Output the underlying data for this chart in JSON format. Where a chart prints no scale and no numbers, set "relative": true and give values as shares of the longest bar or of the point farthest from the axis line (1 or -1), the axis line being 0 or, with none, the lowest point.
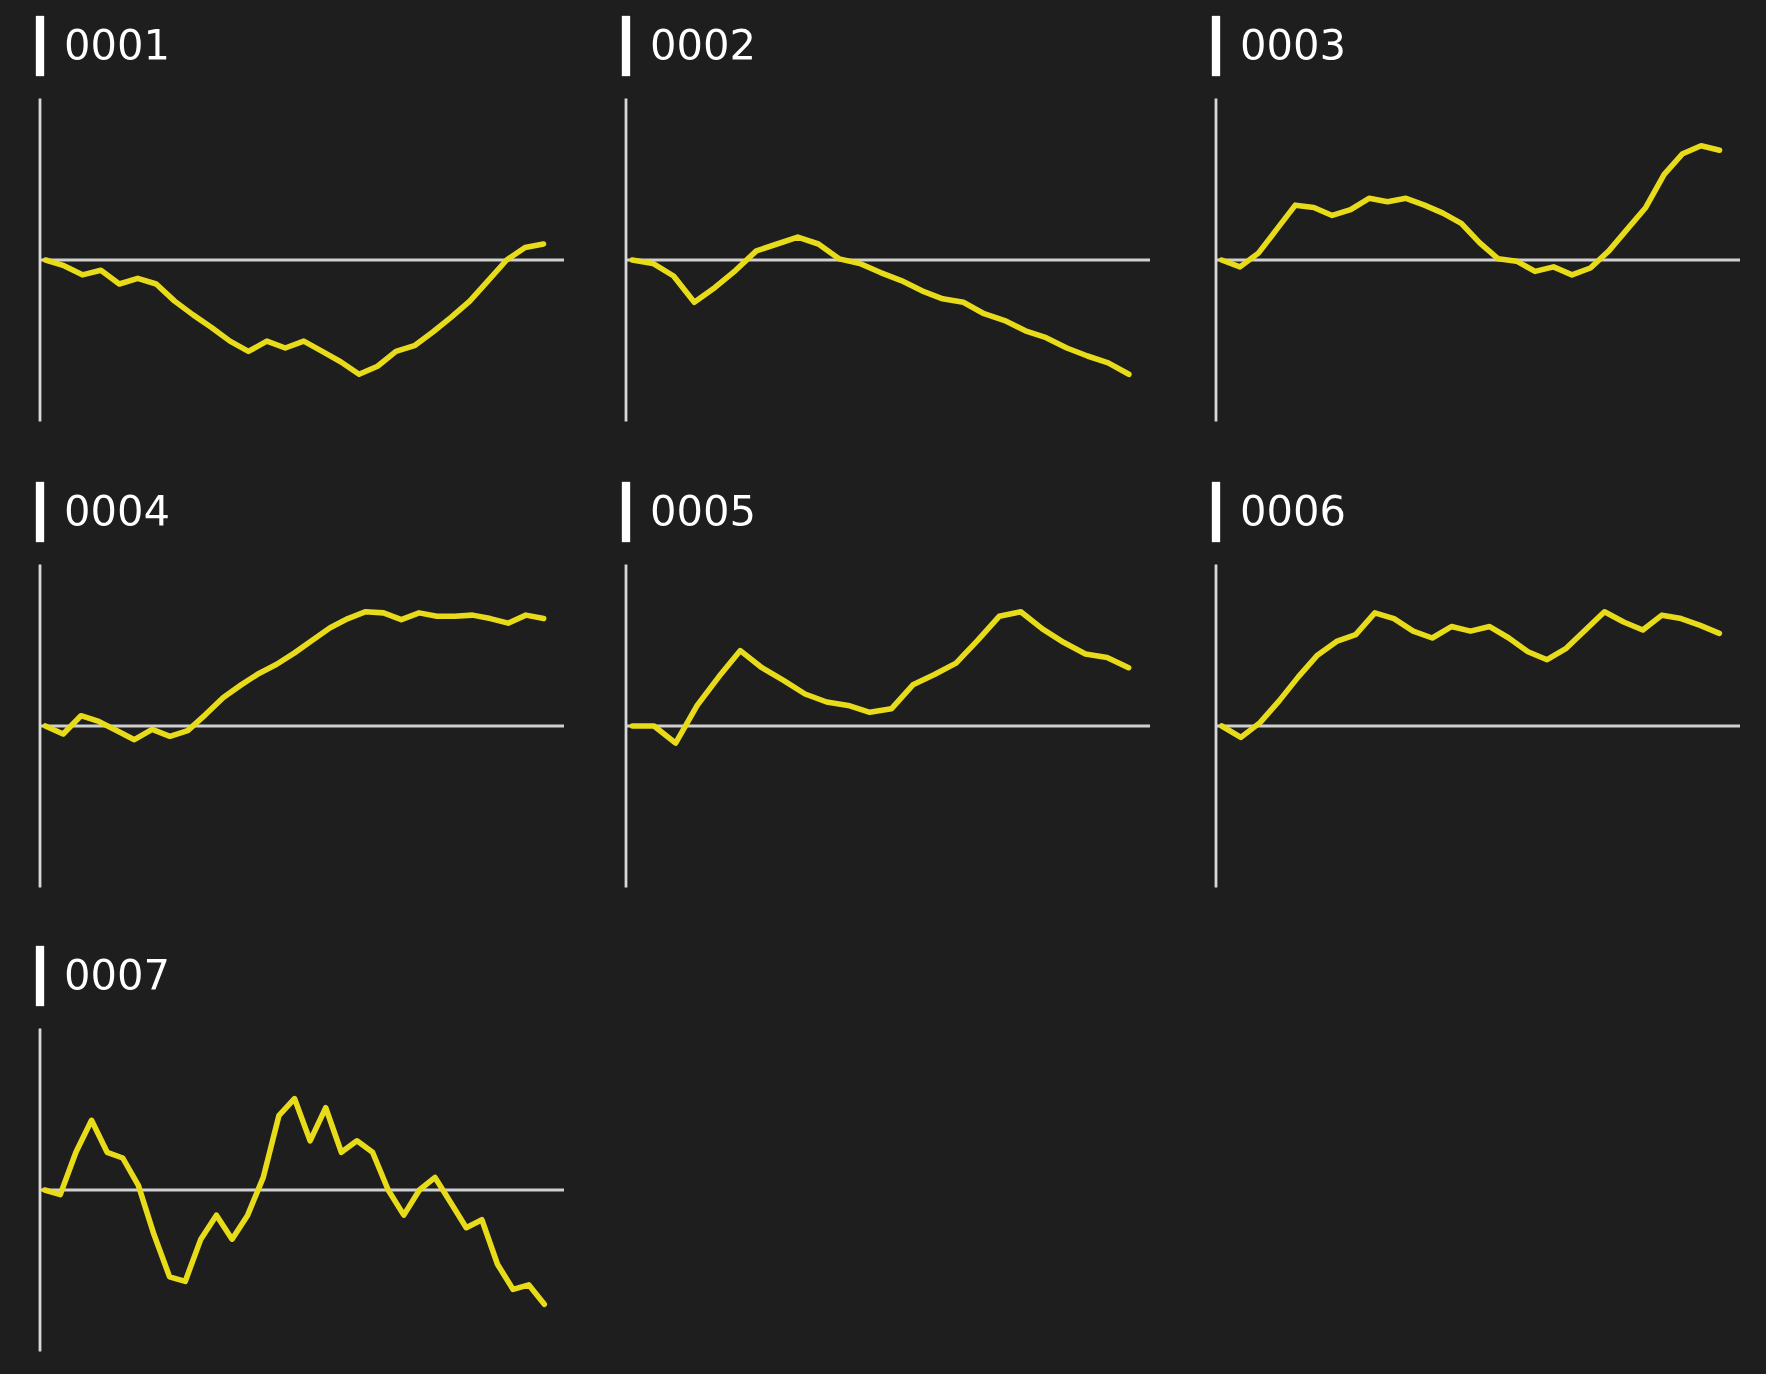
{
  "chart_data": [
    {
      "type": "line",
      "title": "0001",
      "relative": true,
      "categories": [
        null,
        null,
        null,
        null,
        null,
        null,
        null,
        null,
        null,
        null,
        null,
        null,
        null,
        null,
        null,
        null,
        null,
        null,
        null,
        null,
        null,
        null,
        null,
        null,
        null,
        null,
        null,
        null
      ],
      "series": [
        {
          "color": "#e8dc1a",
          "values": [
            0,
            -0.05,
            -0.13,
            -0.09,
            -0.21,
            -0.16,
            -0.21,
            -0.36,
            -0.48,
            -0.59,
            -0.71,
            -0.8,
            -0.71,
            -0.77,
            -0.71,
            -0.8,
            -0.89,
            -1,
            -0.93,
            -0.8,
            -0.75,
            -0.63,
            -0.5,
            -0.36,
            -0.18,
            0,
            0.11,
            0.14
          ]
        }
      ]
    },
    {
      "type": "line",
      "title": "0002",
      "relative": true,
      "categories": [
        null,
        null,
        null,
        null,
        null,
        null,
        null,
        null,
        null,
        null,
        null,
        null,
        null,
        null,
        null,
        null,
        null,
        null,
        null,
        null,
        null,
        null,
        null,
        null,
        null
      ],
      "series": [
        {
          "color": "#e8dc1a",
          "values": [
            0,
            -0.03,
            -0.14,
            -0.37,
            -0.24,
            -0.09,
            0.08,
            0.14,
            0.2,
            0.14,
            0.01,
            -0.03,
            -0.11,
            -0.18,
            -0.27,
            -0.34,
            -0.37,
            -0.47,
            -0.53,
            -0.62,
            -0.68,
            -0.77,
            -0.84,
            -0.9,
            -1
          ]
        }
      ]
    },
    {
      "type": "line",
      "title": "0003",
      "relative": true,
      "categories": [
        null,
        null,
        null,
        null,
        null,
        null,
        null,
        null,
        null,
        null,
        null,
        null,
        null,
        null,
        null,
        null,
        null,
        null,
        null,
        null,
        null,
        null,
        null,
        null,
        null,
        null,
        null,
        null
      ],
      "series": [
        {
          "color": "#e8dc1a",
          "values": [
            0,
            -0.06,
            0.06,
            0.27,
            0.48,
            0.46,
            0.39,
            0.44,
            0.54,
            0.51,
            0.54,
            0.48,
            0.41,
            0.32,
            0.15,
            0.01,
            -0.01,
            -0.1,
            -0.06,
            -0.13,
            -0.07,
            0.08,
            0.27,
            0.46,
            0.75,
            0.93,
            1,
            0.96
          ]
        }
      ]
    },
    {
      "type": "line",
      "title": "0004",
      "relative": true,
      "categories": [
        null,
        null,
        null,
        null,
        null,
        null,
        null,
        null,
        null,
        null,
        null,
        null,
        null,
        null,
        null,
        null,
        null,
        null,
        null,
        null,
        null,
        null,
        null,
        null,
        null,
        null,
        null,
        null,
        null
      ],
      "series": [
        {
          "color": "#e8dc1a",
          "values": [
            0,
            -0.07,
            0.09,
            0.04,
            -0.04,
            -0.12,
            -0.03,
            -0.09,
            -0.04,
            0.1,
            0.25,
            0.36,
            0.46,
            0.54,
            0.64,
            0.75,
            0.86,
            0.94,
            1,
            0.99,
            0.93,
            0.99,
            0.96,
            0.96,
            0.97,
            0.94,
            0.9,
            0.97,
            0.94
          ]
        }
      ]
    },
    {
      "type": "line",
      "title": "0005",
      "relative": true,
      "categories": [
        null,
        null,
        null,
        null,
        null,
        null,
        null,
        null,
        null,
        null,
        null,
        null,
        null,
        null,
        null,
        null,
        null,
        null,
        null,
        null,
        null,
        null,
        null,
        null
      ],
      "series": [
        {
          "color": "#e8dc1a",
          "values": [
            0,
            0,
            -0.15,
            0.18,
            0.43,
            0.66,
            0.51,
            0.4,
            0.28,
            0.21,
            0.18,
            0.12,
            0.15,
            0.36,
            0.45,
            0.55,
            0.75,
            0.96,
            1,
            0.85,
            0.73,
            0.63,
            0.6,
            0.51
          ]
        }
      ]
    },
    {
      "type": "line",
      "title": "0006",
      "relative": true,
      "categories": [
        null,
        null,
        null,
        null,
        null,
        null,
        null,
        null,
        null,
        null,
        null,
        null,
        null,
        null,
        null,
        null,
        null,
        null,
        null,
        null,
        null,
        null,
        null,
        null,
        null,
        null,
        null
      ],
      "series": [
        {
          "color": "#e8dc1a",
          "values": [
            0,
            -0.1,
            0.03,
            0.22,
            0.43,
            0.62,
            0.74,
            0.8,
            0.99,
            0.94,
            0.83,
            0.77,
            0.87,
            0.83,
            0.87,
            0.77,
            0.65,
            0.58,
            0.68,
            0.84,
            1,
            0.91,
            0.84,
            0.97,
            0.94,
            0.88,
            0.81
          ]
        }
      ]
    },
    {
      "type": "line",
      "title": "0007",
      "relative": true,
      "categories": [
        null,
        null,
        null,
        null,
        null,
        null,
        null,
        null,
        null,
        null,
        null,
        null,
        null,
        null,
        null,
        null,
        null,
        null,
        null,
        null,
        null,
        null,
        null,
        null,
        null,
        null,
        null,
        null,
        null,
        null,
        null,
        null,
        null
      ],
      "series": [
        {
          "color": "#e8dc1a",
          "values": [
            0,
            -0.04,
            0.33,
            0.61,
            0.33,
            0.28,
            0.04,
            -0.39,
            -0.76,
            -0.8,
            -0.43,
            -0.22,
            -0.43,
            -0.22,
            0.11,
            0.65,
            0.8,
            0.43,
            0.72,
            0.33,
            0.43,
            0.33,
            0,
            -0.22,
            0,
            0.11,
            -0.11,
            -0.33,
            -0.26,
            -0.65,
            -0.87,
            -0.83,
            -1
          ]
        }
      ]
    }
  ]
}
